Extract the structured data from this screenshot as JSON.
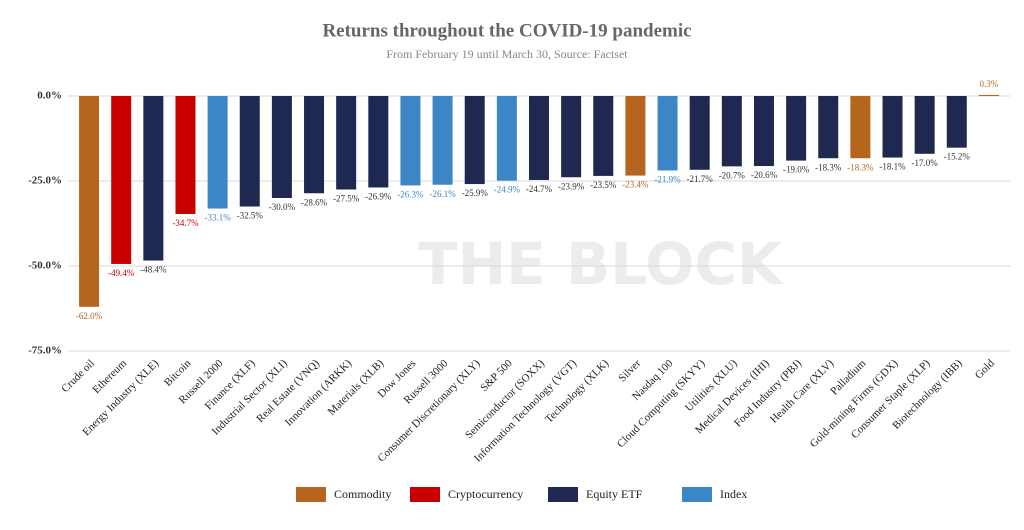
{
  "chart_data": {
    "type": "bar",
    "title": "Returns throughout the COVID-19 pandemic",
    "subtitle": "From February 19 until March 30, Source: Factset",
    "watermark": "THE BLOCK",
    "categories": [
      "Crude oil",
      "Ethereum",
      "Energy Industry (XLE)",
      "Bitcoin",
      "Russell 2000",
      "Finance (XLF)",
      "Industrial Sector (XLI)",
      "Real Estate (VNQ)",
      "Innovation (ARKK)",
      "Materials (XLB)",
      "Dow Jones",
      "Russell 3000",
      "Consumer Discretionary (XLY)",
      "S&P 500",
      "Semiconductor (SOXX)",
      "Information Technology (VGT)",
      "Technology (XLK)",
      "Silver",
      "Nasdaq 100",
      "Cloud Computing (SKYY)",
      "Utilities (XLU)",
      "Medical Devices (IHI)",
      "Food Industry (PBJ)",
      "Health Care (XLV)",
      "Palladium",
      "Gold-mining Firms (GDX)",
      "Consumer Staple (XLP)",
      "Biotechnology (IBB)",
      "Gold"
    ],
    "series": [
      {
        "name": "Commodity",
        "color": "#b5651d",
        "values": [
          -62.0,
          null,
          null,
          null,
          null,
          null,
          null,
          null,
          null,
          null,
          null,
          null,
          null,
          null,
          null,
          null,
          null,
          -23.4,
          null,
          null,
          null,
          null,
          null,
          null,
          -18.3,
          null,
          null,
          null,
          0.3
        ],
        "value_labels": [
          "-62.0%",
          null,
          null,
          null,
          null,
          null,
          null,
          null,
          null,
          null,
          null,
          null,
          null,
          null,
          null,
          null,
          null,
          "-23.4%",
          null,
          null,
          null,
          null,
          null,
          null,
          "-18.3%",
          null,
          null,
          null,
          "0.3%"
        ]
      },
      {
        "name": "Cryptocurrency",
        "color": "#c80000",
        "values": [
          null,
          -49.4,
          null,
          -34.7,
          null,
          null,
          null,
          null,
          null,
          null,
          null,
          null,
          null,
          null,
          null,
          null,
          null,
          null,
          null,
          null,
          null,
          null,
          null,
          null,
          null,
          null,
          null,
          null,
          null
        ],
        "value_labels": [
          null,
          "-49.4%",
          null,
          "-34.7%",
          null,
          null,
          null,
          null,
          null,
          null,
          null,
          null,
          null,
          null,
          null,
          null,
          null,
          null,
          null,
          null,
          null,
          null,
          null,
          null,
          null,
          null,
          null,
          null,
          null
        ]
      },
      {
        "name": "Equity ETF",
        "color": "#1f2850",
        "values": [
          null,
          null,
          -48.4,
          null,
          null,
          -32.5,
          -30.0,
          -28.6,
          -27.5,
          -26.9,
          null,
          null,
          -25.9,
          null,
          -24.7,
          -23.9,
          -23.5,
          null,
          null,
          -21.7,
          -20.7,
          -20.6,
          -19.0,
          -18.3,
          null,
          -18.1,
          -17.0,
          -15.2,
          null
        ],
        "value_labels": [
          null,
          null,
          "-48.4%",
          null,
          null,
          "-32.5%",
          "-30.0%",
          "-28.6%",
          "-27.5%",
          "-26.9%",
          null,
          null,
          "-25.9%",
          null,
          "-24.7%",
          "-23.9%",
          "-23.5%",
          null,
          null,
          "-21.7%",
          "-20.7%",
          "-20.6%",
          "-19.0%",
          "-18.3%",
          null,
          "-18.1%",
          "-17.0%",
          "-15.2%",
          null
        ]
      },
      {
        "name": "Index",
        "color": "#3d86c6",
        "values": [
          null,
          null,
          null,
          null,
          -33.1,
          null,
          null,
          null,
          null,
          null,
          -26.3,
          -26.1,
          null,
          -24.9,
          null,
          null,
          null,
          null,
          -21.9,
          null,
          null,
          null,
          null,
          null,
          null,
          null,
          null,
          null,
          null
        ],
        "value_labels": [
          null,
          null,
          null,
          null,
          "-33.1%",
          null,
          null,
          null,
          null,
          null,
          "-26.3%",
          "-26.1%",
          null,
          "-24.9%",
          null,
          null,
          null,
          null,
          "-21.9%",
          null,
          null,
          null,
          null,
          null,
          null,
          null,
          null,
          null,
          null
        ]
      }
    ],
    "ylim": [
      -75,
      0
    ],
    "yticks": [
      {
        "value": 0,
        "label": "0.0%"
      },
      {
        "value": -25,
        "label": "-25.0%"
      },
      {
        "value": -50,
        "label": "-50.0%"
      },
      {
        "value": -75,
        "label": "-75.0%"
      }
    ],
    "grid": true
  }
}
